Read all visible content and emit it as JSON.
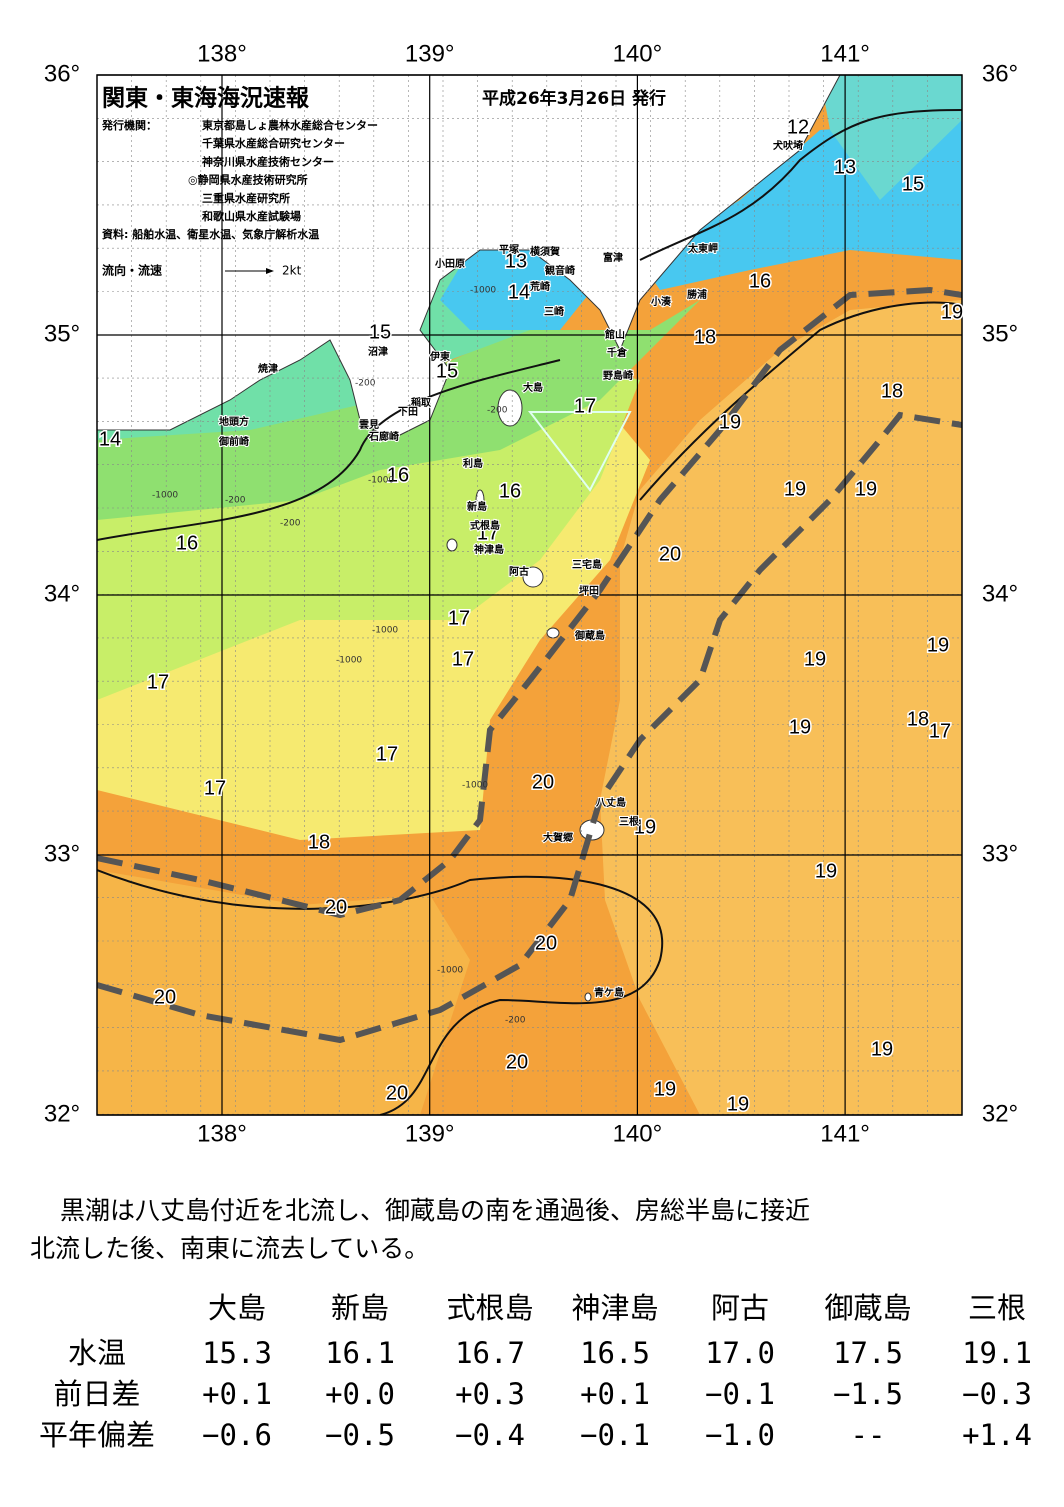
{
  "header": {
    "title": "関東・東海海況速報",
    "date": "平成26年3月26日 発行",
    "issuer_label": "発行機関：",
    "issuers": [
      "東京都島しょ農林水産総合センター",
      "千葉県水産総合研究センター",
      "神奈川県水産技術センター",
      "◎静岡県水産技術研究所",
      "三重県水産研究所",
      "和歌山県水産試験場"
    ],
    "source": "資料: 船舶水温、衛星水温、気象庁解析水温",
    "legend": "流向・流速",
    "legend_scale": "2kt"
  },
  "map": {
    "lon_ticks": [
      {
        "value": 138,
        "label": "138°"
      },
      {
        "value": 139,
        "label": "139°"
      },
      {
        "value": 140,
        "label": "140°"
      },
      {
        "value": 141,
        "label": "141°"
      }
    ],
    "lat_ticks": [
      {
        "value": 36,
        "label": "36°"
      },
      {
        "value": 35,
        "label": "35°"
      },
      {
        "value": 34,
        "label": "34°"
      },
      {
        "value": 33,
        "label": "33°"
      },
      {
        "value": 32,
        "label": "32°"
      }
    ],
    "contour_labels": [
      "12",
      "13",
      "15",
      "16",
      "19",
      "18",
      "18",
      "19",
      "19",
      "19",
      "20",
      "19",
      "19",
      "19",
      "18",
      "17",
      "20",
      "19",
      "19",
      "20",
      "20",
      "20",
      "19",
      "20",
      "20",
      "19",
      "19",
      "13",
      "14",
      "15",
      "15",
      "14",
      "17",
      "16",
      "16",
      "16",
      "17",
      "17",
      "17",
      "17",
      "17",
      "17",
      "18"
    ],
    "depth_labels": [
      "-1000",
      "-200",
      "-1000",
      "-200",
      "-1000",
      "-200",
      "-1000",
      "-1000",
      "-1000",
      "-200",
      "-1000",
      "-200"
    ],
    "places": [
      "犬吠埼",
      "太東岬",
      "富津",
      "横須賀",
      "平塚",
      "観音崎",
      "小田原",
      "荒崎",
      "三崎",
      "勝浦",
      "小湊",
      "館山",
      "千倉",
      "野島崎",
      "沼津",
      "伊東",
      "焼津",
      "大島",
      "稲取",
      "下田",
      "雲見",
      "石廊崎",
      "地頭方",
      "御前崎",
      "利島",
      "新島",
      "式根島",
      "神津島",
      "三宅島",
      "阿古",
      "坪田",
      "御蔵島",
      "八丈島",
      "三根",
      "大賀郷",
      "青ケ島"
    ]
  },
  "description": [
    "黒潮は八丈島付近を北流し、御蔵島の南を通過後、房総半島に接近",
    "北流した後、南東に流去している。"
  ],
  "table": {
    "columns": [
      "大島",
      "新島",
      "式根島",
      "神津島",
      "阿古",
      "御蔵島",
      "三根"
    ],
    "rows": [
      {
        "label": "水温",
        "cells": [
          "15.3",
          "16.1",
          "16.7",
          "16.5",
          "17.0",
          "17.5",
          "19.1"
        ]
      },
      {
        "label": "前日差",
        "cells": [
          "+0.1",
          "+0.0",
          "+0.3",
          "+0.1",
          "−0.1",
          "−1.5",
          "−0.3"
        ]
      },
      {
        "label": "平年偏差",
        "cells": [
          "−0.6",
          "−0.5",
          "−0.4",
          "−0.1",
          "−1.0",
          "--",
          "+1.4"
        ]
      }
    ]
  }
}
